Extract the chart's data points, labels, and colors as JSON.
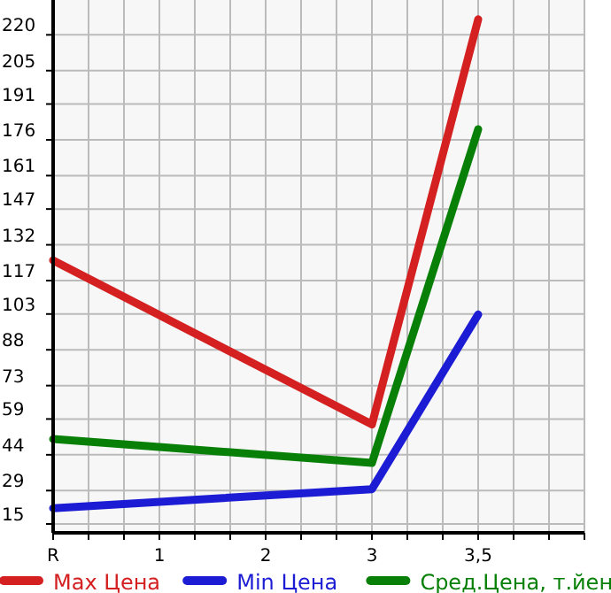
{
  "chart_data": {
    "type": "line",
    "categories": [
      "R",
      "1",
      "2",
      "3",
      "3,5",
      null
    ],
    "ylim": [
      11.3,
      234.6
    ],
    "yticks": [
      15,
      29,
      44,
      59,
      73,
      88,
      103,
      117,
      132,
      147,
      161,
      176,
      191,
      205,
      220
    ],
    "grid": true,
    "legend": "bottom",
    "marker": "none",
    "line_style": "solid",
    "series": [
      {
        "name": "Max Цена",
        "color": "#d42020",
        "values": [
          125.5,
          null,
          null,
          56.7,
          226.5,
          null
        ]
      },
      {
        "name": "Min Цена",
        "color": "#1c1cd4",
        "values": [
          21.6,
          null,
          null,
          29.6,
          102.8,
          null
        ]
      },
      {
        "name": "Сред.Цена, т.йен",
        "color": "#088008",
        "values": [
          50.6,
          null,
          null,
          40.6,
          180.4,
          null
        ]
      }
    ]
  }
}
